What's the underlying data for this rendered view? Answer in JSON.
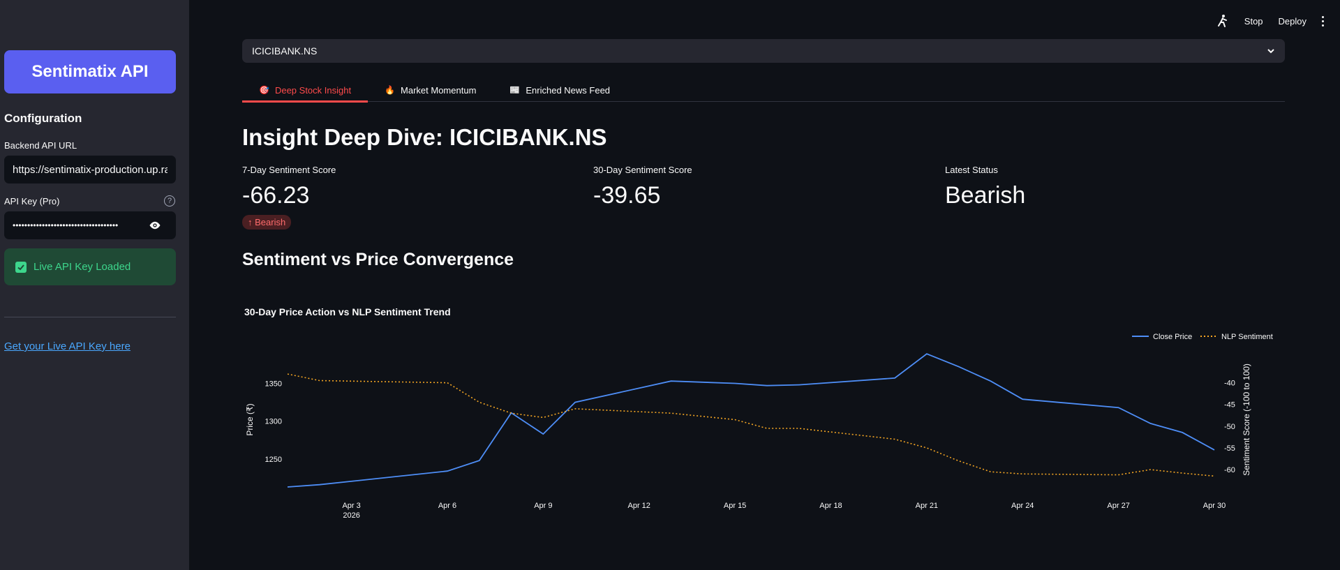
{
  "sidebar": {
    "brand_button": "Sentimatix API",
    "config_title": "Configuration",
    "backend_label": "Backend API URL",
    "backend_value": "https://sentimatix-production.up.railway.app",
    "apikey_label": "API Key (Pro)",
    "apikey_value": "••••••••••••••••••••••••••••••••••••",
    "success_message": "Live API Key Loaded",
    "link_text": "Get your Live API Key here"
  },
  "header": {
    "stop_label": "Stop",
    "deploy_label": "Deploy"
  },
  "main": {
    "ticker_select": "ICICIBANK.NS",
    "tabs": [
      {
        "icon": "🎯",
        "label": "Deep Stock Insight"
      },
      {
        "icon": "🔥",
        "label": "Market Momentum"
      },
      {
        "icon": "📰",
        "label": "Enriched News Feed"
      }
    ],
    "page_title": "Insight Deep Dive: ICICIBANK.NS",
    "metrics": [
      {
        "label": "7-Day Sentiment Score",
        "value": "-66.23",
        "delta": "↑ Bearish"
      },
      {
        "label": "30-Day Sentiment Score",
        "value": "-39.65"
      },
      {
        "label": "Latest Status",
        "value": "Bearish"
      }
    ],
    "section_title": "Sentiment vs Price Convergence"
  },
  "colors": {
    "accent": "#ff4b4b",
    "price_line": "#4e8ef7",
    "sentiment_line": "#f5a623"
  },
  "chart_data": {
    "type": "line",
    "title": "30-Day Price Action vs NLP Sentiment Trend",
    "ylabel": "Price (₹)",
    "y2label": "Sentiment Score (-100 to 100)",
    "xlim": [
      "2026-04-01",
      "2026-04-30"
    ],
    "ylim": [
      1213,
      1391
    ],
    "y2lim": [
      -64,
      -33
    ],
    "x_ticks": [
      "Apr 3",
      "Apr 6",
      "Apr 9",
      "Apr 12",
      "Apr 15",
      "Apr 18",
      "Apr 21",
      "Apr 24",
      "Apr 27",
      "Apr 30"
    ],
    "x_tick_dates": [
      "2026-04-03",
      "2026-04-06",
      "2026-04-09",
      "2026-04-12",
      "2026-04-15",
      "2026-04-18",
      "2026-04-21",
      "2026-04-24",
      "2026-04-27",
      "2026-04-30"
    ],
    "x_year_label": "2026",
    "y_ticks": [
      1250,
      1300,
      1350
    ],
    "y2_ticks": [
      -40,
      -45,
      -50,
      -55,
      -60
    ],
    "legend": "top-right",
    "series": [
      {
        "name": "Close Price",
        "axis": "left",
        "x": [
          "2026-04-01",
          "2026-04-02",
          "2026-04-06",
          "2026-04-07",
          "2026-04-08",
          "2026-04-09",
          "2026-04-10",
          "2026-04-13",
          "2026-04-15",
          "2026-04-16",
          "2026-04-17",
          "2026-04-20",
          "2026-04-21",
          "2026-04-22",
          "2026-04-23",
          "2026-04-24",
          "2026-04-27",
          "2026-04-28",
          "2026-04-29",
          "2026-04-30"
        ],
        "values": [
          1213,
          1216,
          1234,
          1248,
          1311,
          1283,
          1325,
          1353,
          1350,
          1347,
          1348,
          1357,
          1389,
          1372,
          1353,
          1329,
          1318,
          1297,
          1285,
          1262
        ]
      },
      {
        "name": "NLP Sentiment",
        "axis": "right",
        "x": [
          "2026-04-01",
          "2026-04-02",
          "2026-04-06",
          "2026-04-07",
          "2026-04-08",
          "2026-04-09",
          "2026-04-10",
          "2026-04-13",
          "2026-04-15",
          "2026-04-16",
          "2026-04-17",
          "2026-04-20",
          "2026-04-21",
          "2026-04-22",
          "2026-04-23",
          "2026-04-24",
          "2026-04-27",
          "2026-04-28",
          "2026-04-29",
          "2026-04-30"
        ],
        "values": [
          -38,
          -39.5,
          -40,
          -44.5,
          -47,
          -48,
          -46,
          -47,
          -48.5,
          -50.5,
          -50.5,
          -53,
          -55,
          -58,
          -60.5,
          -61,
          -61.2,
          -60,
          -60.8,
          -61.5
        ]
      }
    ]
  }
}
